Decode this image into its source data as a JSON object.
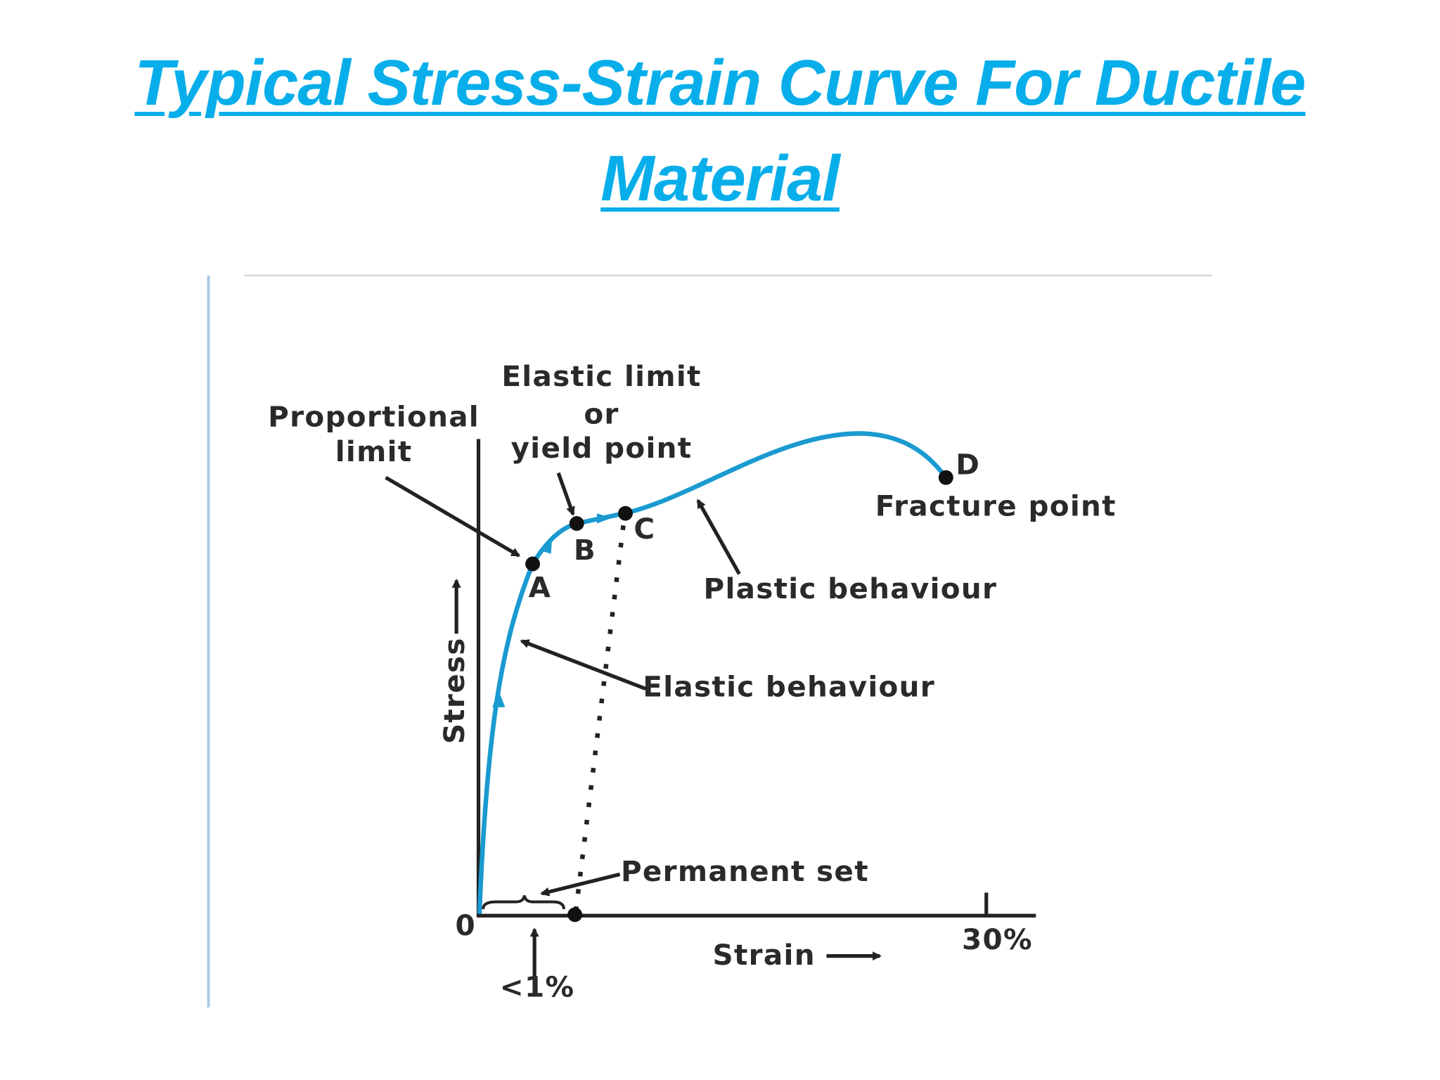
{
  "title_lines": [
    "Typical Stress-Strain Curve For Ductile",
    "Material"
  ],
  "diagram": {
    "elastic_limit": [
      "Elastic limit",
      "or",
      "yield point"
    ],
    "proportional_limit": [
      "Proportional",
      "limit"
    ],
    "points": [
      "A",
      "B",
      "C",
      "D"
    ],
    "fracture_point": "Fracture point",
    "plastic_behaviour": "Plastic behaviour",
    "elastic_behaviour": "Elastic behaviour",
    "permanent_set": "Permanent set",
    "y_axis": "Stress",
    "x_axis": "Strain",
    "origin": "0",
    "x_max": "30%",
    "x_small": "<1%"
  }
}
